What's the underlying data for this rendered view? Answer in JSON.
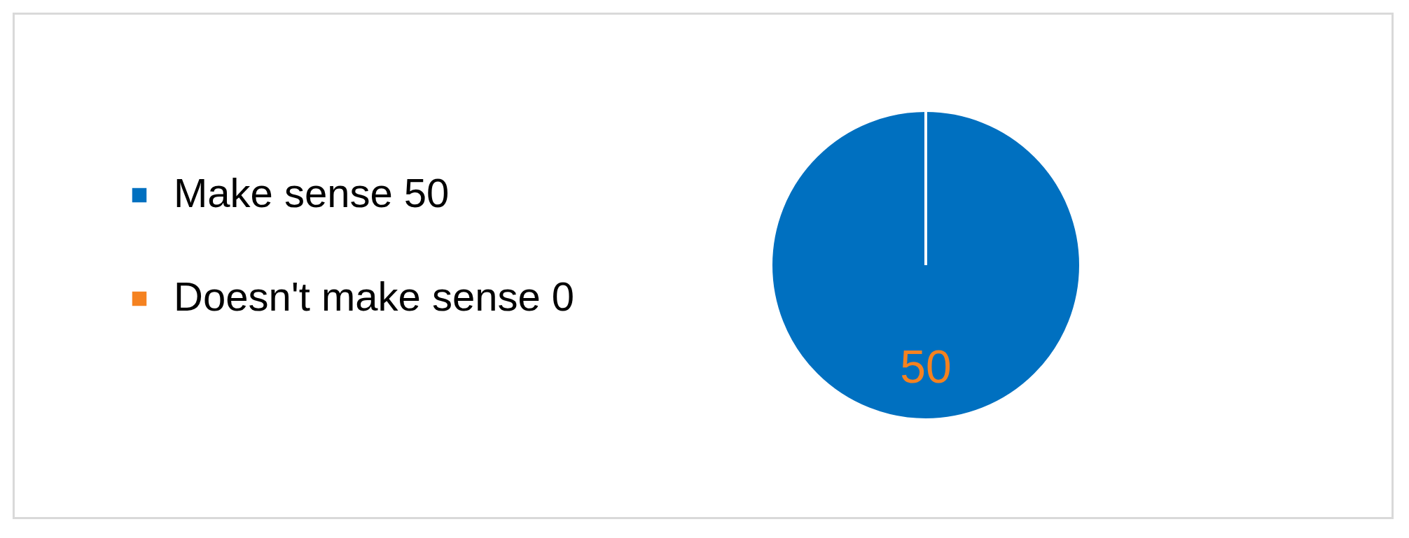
{
  "chart_data": {
    "type": "pie",
    "categories": [
      "Make sense 50",
      "Doesn't make sense 0"
    ],
    "values": [
      50,
      0
    ],
    "colors": [
      "#0070c0",
      "#f58220"
    ],
    "data_labels": true,
    "legend": "left"
  }
}
